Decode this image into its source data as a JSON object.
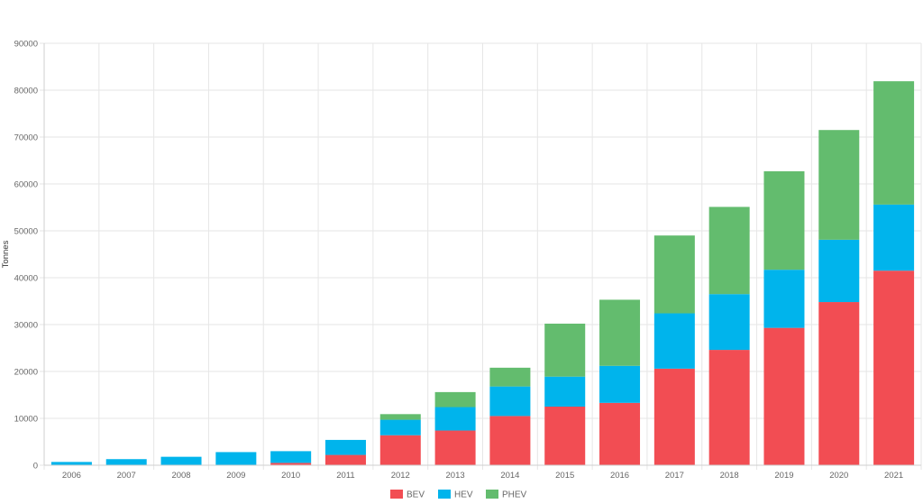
{
  "chart_data": {
    "type": "bar",
    "stacked": true,
    "title": "",
    "xlabel": "",
    "ylabel": "Tonnes",
    "ylim": [
      0,
      90000
    ],
    "y_ticks": [
      "0",
      "10000",
      "20000",
      "30000",
      "40000",
      "50000",
      "60000",
      "70000",
      "80000",
      "90000"
    ],
    "grid": true,
    "legend_position": "bottom",
    "categories": [
      "2006",
      "2007",
      "2008",
      "2009",
      "2010",
      "2011",
      "2012",
      "2013",
      "2014",
      "2015",
      "2016",
      "2017",
      "2018",
      "2019",
      "2020",
      "2021"
    ],
    "series": [
      {
        "name": "BEV",
        "color": "#f24d53",
        "values": [
          0,
          0,
          0,
          0,
          500,
          2200,
          6400,
          7400,
          10500,
          12500,
          13300,
          20600,
          24600,
          29300,
          34800,
          41500
        ]
      },
      {
        "name": "HEV",
        "color": "#00b4ec",
        "values": [
          700,
          1300,
          1800,
          2800,
          2500,
          3200,
          3300,
          5000,
          6300,
          6400,
          7900,
          11800,
          11900,
          12400,
          13300,
          14100
        ]
      },
      {
        "name": "PHEV",
        "color": "#63bc6e",
        "values": [
          0,
          0,
          0,
          0,
          0,
          0,
          1200,
          3200,
          4000,
          11300,
          14100,
          16600,
          18600,
          21000,
          23400,
          26300
        ]
      }
    ]
  }
}
